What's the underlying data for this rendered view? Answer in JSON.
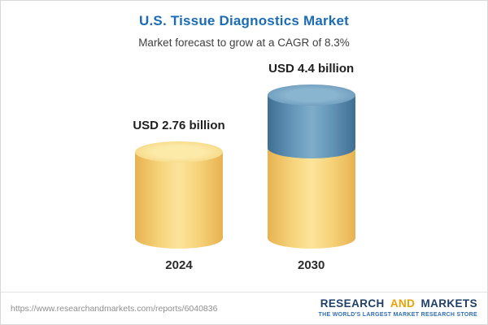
{
  "header": {
    "title": "U.S. Tissue Diagnostics Market",
    "subtitle": "Market forecast to grow at a CAGR of 8.3%"
  },
  "chart_data": {
    "type": "bar",
    "style": "3d-cylinder",
    "categories": [
      "2024",
      "2030"
    ],
    "values": [
      2.76,
      4.4
    ],
    "value_labels": [
      "USD 2.76 billion",
      "USD 4.4 billion"
    ],
    "title": "U.S. Tissue Diagnostics Market",
    "subtitle": "Market forecast to grow at a CAGR of 8.3%",
    "unit": "USD billion",
    "cagr": "8.3%",
    "xlabel": "",
    "ylabel": "",
    "legend": "none",
    "grid": "off",
    "colors": {
      "base_segment": "#f6d37a",
      "growth_segment": "#6496b8"
    },
    "notes": "2030 bar shows base value in yellow plus growth segment (4.4 - 2.76 = 1.64) in blue on top"
  },
  "footer": {
    "url": "https://www.researchandmarkets.com/reports/6040836",
    "brand_research": "RESEARCH",
    "brand_and": "AND",
    "brand_markets": "MARKETS",
    "tagline": "THE WORLD'S LARGEST MARKET RESEARCH STORE"
  }
}
